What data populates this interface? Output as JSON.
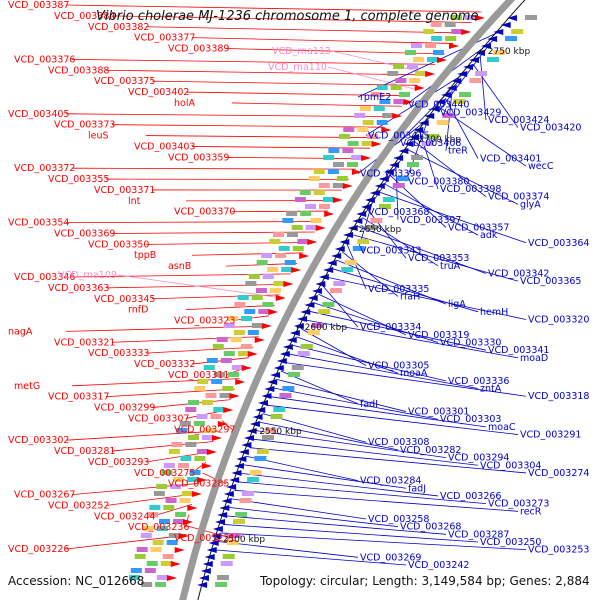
{
  "title": "Vibrio cholerae MJ-1236 chromosome 1, complete genome",
  "accession": "Accession: NC_012668",
  "topology": "Topology: circular; Length: 3,149,584 bp; Genes: 2,884",
  "colors": {
    "left_gene": "#ff0000",
    "right_gene": "#0000cc",
    "rna": "#ff88cc",
    "backbone": "#999999",
    "ruler": "#111111"
  },
  "ruler_ticks": [
    "2750 kbp",
    "2700 kbp",
    "2650 kbp",
    "2600 kbp",
    "2550 kbp",
    "2500 kbp"
  ],
  "left_labels": [
    "VCD_003387",
    "VCD_003384",
    "VCD_003382",
    "VCD_003377",
    "VCD_003389",
    "VCD_003376",
    "VCD_003388",
    "VCD_003375",
    "VCD_003402",
    "holA",
    "VCD_003405",
    "VCD_003373",
    "leuS",
    "VCD_003403",
    "VCD_003359",
    "VCD_003372",
    "VCD_003355",
    "VCD_003371",
    "lnt",
    "VCD_003370",
    "VCD_003354",
    "VCD_003369",
    "VCD_003350",
    "tppB",
    "asnB",
    "VCD_003346",
    "VCD_003363",
    "VCD_003345",
    "rnfD",
    "VCD_003323",
    "nagA",
    "VCD_003321",
    "VCD_003333",
    "VCD_003332",
    "VCD_003311",
    "metG",
    "VCD_003317",
    "VCD_003299",
    "VCD_003307",
    "VCD_003297",
    "VCD_003302",
    "VCD_003281",
    "VCD_003293",
    "VCD_003275",
    "VCD_003285",
    "VCD_003267",
    "VCD_003252",
    "VCD_003244",
    "VCD_003236",
    "VCD_003231",
    "VCD_003226"
  ],
  "rna_labels": [
    "VCD_rna113",
    "VCD_rna110",
    "VCD_rna109"
  ],
  "right_labels": [
    "rpmE2",
    "VCD_003440",
    "VCD_003429",
    "VCD_003424",
    "VCD_003420",
    "VCD_003415",
    "VCD_003408",
    "treR",
    "VCD_003401",
    "wecC",
    "VCD_003396",
    "VCD_003380",
    "VCD_003398",
    "VCD_003374",
    "glyA",
    "VCD_003368",
    "VCD_003397",
    "VCD_003357",
    "adk",
    "VCD_003364",
    "VCD_003343",
    "VCD_003353",
    "truA",
    "VCD_003342",
    "VCD_003365",
    "VCD_003335",
    "rfaH",
    "ligA",
    "hemH",
    "VCD_003320",
    "VCD_003334",
    "VCD_003319",
    "VCD_003330",
    "VCD_003341",
    "moaD",
    "VCD_003305",
    "moaA",
    "VCD_003336",
    "zntA",
    "VCD_003318",
    "fadI",
    "VCD_003301",
    "VCD_003303",
    "moaC",
    "VCD_003291",
    "VCD_003308",
    "VCD_003282",
    "VCD_003294",
    "VCD_003304",
    "VCD_003274",
    "VCD_003284",
    "fadJ",
    "VCD_003266",
    "VCD_003273",
    "recR",
    "VCD_003258",
    "VCD_003268",
    "VCD_003287",
    "VCD_003250",
    "VCD_003253",
    "VCD_003269",
    "VCD_003242"
  ]
}
